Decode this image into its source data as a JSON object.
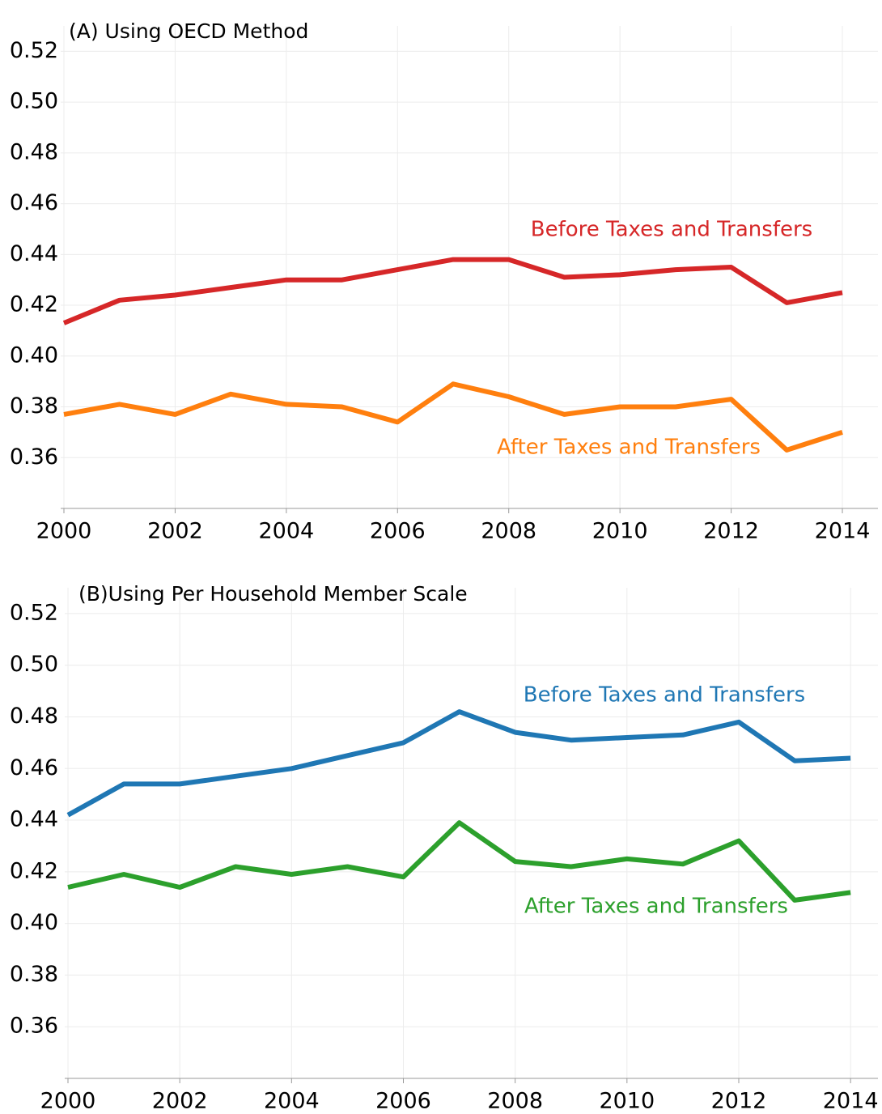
{
  "chart_data": [
    {
      "type": "line",
      "title": "(A) Using OECD Method",
      "x": [
        2000,
        2001,
        2002,
        2003,
        2004,
        2005,
        2006,
        2007,
        2008,
        2009,
        2010,
        2011,
        2012,
        2013,
        2014
      ],
      "series": [
        {
          "name": "Before Taxes and Transfers",
          "color": "#d62728",
          "values": [
            0.413,
            0.422,
            0.424,
            0.427,
            0.43,
            0.43,
            0.434,
            0.438,
            0.438,
            0.431,
            0.432,
            0.434,
            0.435,
            0.421,
            0.425
          ]
        },
        {
          "name": "After Taxes and Transfers",
          "color": "#ff7f0e",
          "values": [
            0.377,
            0.381,
            0.377,
            0.385,
            0.381,
            0.38,
            0.374,
            0.389,
            0.384,
            0.377,
            0.38,
            0.38,
            0.383,
            0.363,
            0.37
          ]
        }
      ],
      "xlim": [
        2000,
        2014.64
      ],
      "xticks": [
        2000,
        2002,
        2004,
        2006,
        2008,
        2010,
        2012,
        2014
      ],
      "ylim": [
        0.34,
        0.53
      ],
      "yticks": [
        0.36,
        0.38,
        {
          "value": 0.4,
          "label": "0.40"
        },
        0.42,
        0.44,
        0.46,
        0.48,
        {
          "value": 0.5,
          "label": "0.50"
        },
        0.52
      ],
      "grid": true
    },
    {
      "type": "line",
      "title": "(B)Using Per Household Member Scale",
      "x": [
        2000,
        2001,
        2002,
        2003,
        2004,
        2005,
        2006,
        2007,
        2008,
        2009,
        2010,
        2011,
        2012,
        2013,
        2014
      ],
      "series": [
        {
          "name": "Before Taxes and Transfers",
          "color": "#1f77b4",
          "values": [
            0.442,
            0.454,
            0.454,
            0.457,
            0.46,
            0.465,
            0.47,
            0.482,
            0.474,
            0.471,
            0.472,
            0.473,
            0.478,
            0.463,
            0.464
          ]
        },
        {
          "name": "After Taxes and Transfers",
          "color": "#2ca02c",
          "values": [
            0.414,
            0.419,
            0.414,
            0.422,
            0.419,
            0.422,
            0.418,
            0.439,
            0.424,
            0.422,
            0.425,
            0.423,
            0.432,
            0.409,
            0.412
          ]
        }
      ],
      "xlim": [
        2000,
        2014.49
      ],
      "xticks": [
        2000,
        2002,
        2004,
        2006,
        2008,
        2010,
        2012,
        2014
      ],
      "ylim": [
        0.34,
        0.53
      ],
      "yticks": [
        0.36,
        0.38,
        {
          "value": 0.4,
          "label": "0.40"
        },
        0.42,
        0.44,
        0.46,
        0.48,
        {
          "value": 0.5,
          "label": "0.50"
        },
        0.52
      ],
      "grid": true
    }
  ]
}
